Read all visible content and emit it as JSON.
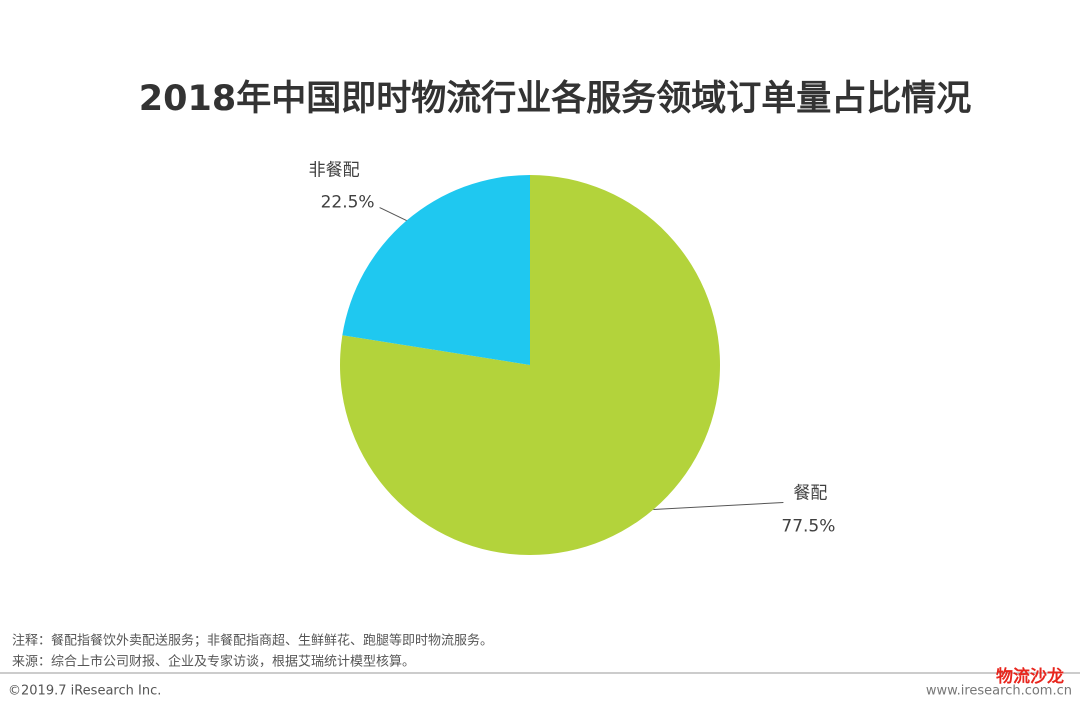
{
  "chart_data": {
    "type": "pie",
    "title": "2018年中国即时物流行业各服务领域订单量占比情况",
    "categories": [
      "餐配",
      "非餐配"
    ],
    "values": [
      77.5,
      22.5
    ],
    "value_labels": [
      "77.5%",
      "22.5%"
    ],
    "colors": [
      "#b3d33b",
      "#1fc8f0"
    ]
  },
  "footer": {
    "note": "注释：餐配指餐饮外卖配送服务；非餐配指商超、生鲜鲜花、跑腿等即时物流服务。",
    "source": "来源：综合上市公司财报、企业及专家访谈，根据艾瑞统计模型核算。",
    "copyright": "©2019.7 iResearch Inc.",
    "website": "www.iresearch.com.cn",
    "logo": "物流沙龙"
  }
}
